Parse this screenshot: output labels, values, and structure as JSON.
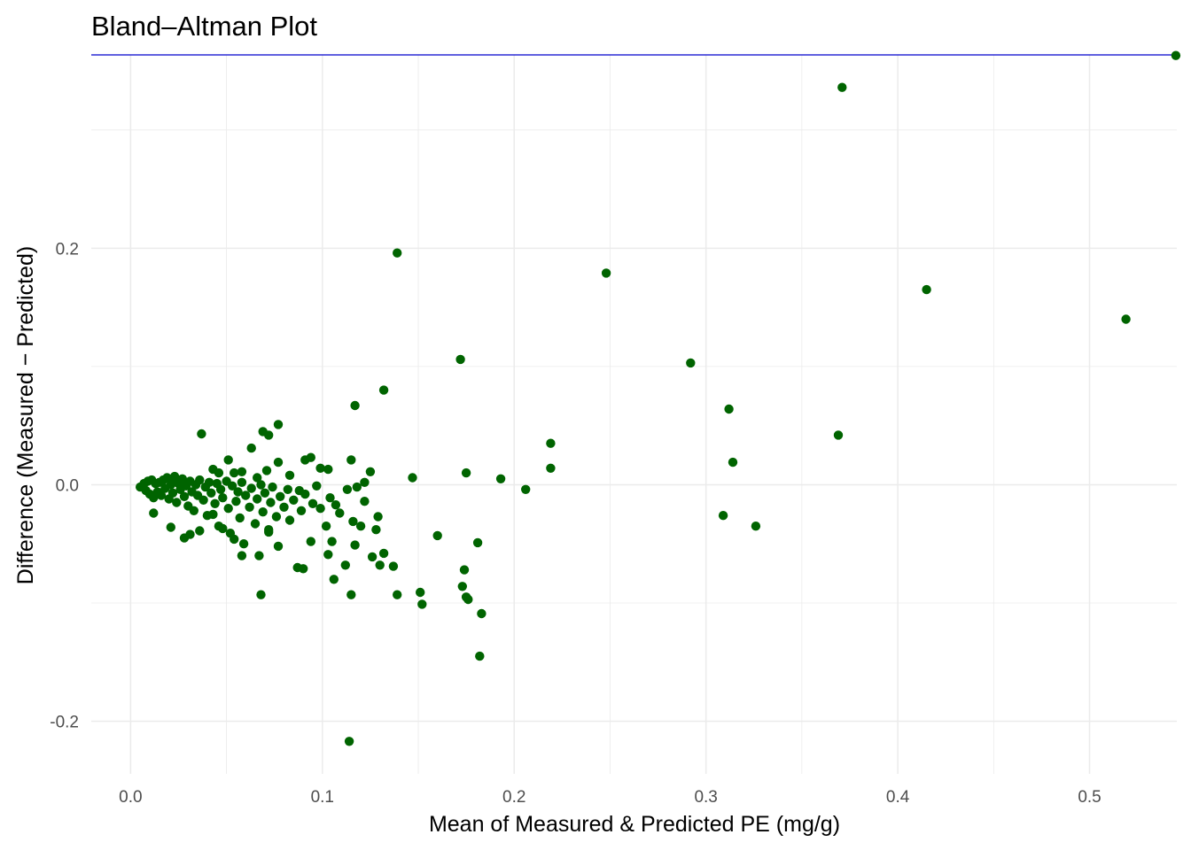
{
  "chart_data": {
    "type": "scatter",
    "title": "Bland–Altman Plot",
    "xlabel": "Mean of Measured & Predicted PE (mg/g)",
    "ylabel": "Difference (Measured − Predicted)",
    "xlim": [
      -0.0205,
      0.5455
    ],
    "ylim": [
      -0.2445,
      0.3635
    ],
    "x_ticks": [
      0.0,
      0.1,
      0.2,
      0.3,
      0.4,
      0.5
    ],
    "x_tick_labels": [
      "0.0",
      "0.1",
      "0.2",
      "0.3",
      "0.4",
      "0.5"
    ],
    "y_ticks": [
      -0.2,
      0.0,
      0.2
    ],
    "y_tick_labels": [
      "-0.2",
      "0.0",
      "0.2"
    ],
    "grid": true,
    "colors": {
      "points": "#006400",
      "reference_line": "#0000cc",
      "grid": "#ebebeb"
    },
    "reference_lines": [
      {
        "y": 0.3635
      }
    ],
    "series": [
      {
        "points": [
          [
            0.545,
            0.363
          ],
          [
            0.371,
            0.336
          ],
          [
            0.139,
            0.196
          ],
          [
            0.248,
            0.179
          ],
          [
            0.415,
            0.165
          ],
          [
            0.519,
            0.14
          ],
          [
            0.172,
            0.106
          ],
          [
            0.292,
            0.103
          ],
          [
            0.132,
            0.08
          ],
          [
            0.117,
            0.067
          ],
          [
            0.312,
            0.064
          ],
          [
            0.077,
            0.051
          ],
          [
            0.069,
            0.045
          ],
          [
            0.037,
            0.043
          ],
          [
            0.072,
            0.042
          ],
          [
            0.369,
            0.042
          ],
          [
            0.219,
            0.035
          ],
          [
            0.063,
            0.031
          ],
          [
            0.051,
            0.021
          ],
          [
            0.115,
            0.021
          ],
          [
            0.091,
            0.021
          ],
          [
            0.094,
            0.023
          ],
          [
            0.077,
            0.019
          ],
          [
            0.314,
            0.019
          ],
          [
            0.219,
            0.014
          ],
          [
            0.099,
            0.014
          ],
          [
            0.103,
            0.013
          ],
          [
            0.043,
            0.013
          ],
          [
            0.046,
            0.01
          ],
          [
            0.054,
            0.01
          ],
          [
            0.125,
            0.011
          ],
          [
            0.058,
            0.011
          ],
          [
            0.071,
            0.012
          ],
          [
            0.175,
            0.01
          ],
          [
            0.023,
            0.007
          ],
          [
            0.066,
            0.006
          ],
          [
            0.147,
            0.006
          ],
          [
            0.193,
            0.005
          ],
          [
            0.122,
            0.002
          ],
          [
            0.083,
            0.008
          ],
          [
            0.206,
            -0.004
          ],
          [
            0.005,
            -0.002
          ],
          [
            0.007,
            0.001
          ],
          [
            0.008,
            -0.005
          ],
          [
            0.009,
            0.003
          ],
          [
            0.01,
            -0.008
          ],
          [
            0.011,
            0.004
          ],
          [
            0.012,
            -0.011
          ],
          [
            0.013,
            0.001
          ],
          [
            0.014,
            -0.006
          ],
          [
            0.015,
            0.002
          ],
          [
            0.016,
            -0.009
          ],
          [
            0.017,
            0.004
          ],
          [
            0.018,
            -0.003
          ],
          [
            0.019,
            0.006
          ],
          [
            0.02,
            -0.012
          ],
          [
            0.021,
            0.0
          ],
          [
            0.022,
            -0.007
          ],
          [
            0.023,
            0.003
          ],
          [
            0.024,
            -0.015
          ],
          [
            0.025,
            0.001
          ],
          [
            0.026,
            -0.004
          ],
          [
            0.027,
            0.005
          ],
          [
            0.028,
            -0.01
          ],
          [
            0.029,
            -0.001
          ],
          [
            0.03,
            -0.018
          ],
          [
            0.031,
            0.003
          ],
          [
            0.032,
            -0.006
          ],
          [
            0.033,
            -0.022
          ],
          [
            0.034,
            0.0
          ],
          [
            0.035,
            -0.009
          ],
          [
            0.036,
            0.004
          ],
          [
            0.038,
            -0.013
          ],
          [
            0.039,
            -0.002
          ],
          [
            0.04,
            -0.026
          ],
          [
            0.041,
            0.002
          ],
          [
            0.042,
            -0.007
          ],
          [
            0.044,
            -0.016
          ],
          [
            0.045,
            0.001
          ],
          [
            0.046,
            -0.035
          ],
          [
            0.047,
            -0.004
          ],
          [
            0.048,
            -0.011
          ],
          [
            0.05,
            0.003
          ],
          [
            0.051,
            -0.02
          ],
          [
            0.052,
            -0.041
          ],
          [
            0.053,
            -0.001
          ],
          [
            0.055,
            -0.014
          ],
          [
            0.056,
            -0.006
          ],
          [
            0.057,
            -0.028
          ],
          [
            0.058,
            0.002
          ],
          [
            0.059,
            -0.05
          ],
          [
            0.06,
            -0.009
          ],
          [
            0.062,
            -0.019
          ],
          [
            0.063,
            -0.003
          ],
          [
            0.065,
            -0.033
          ],
          [
            0.066,
            -0.012
          ],
          [
            0.067,
            -0.06
          ],
          [
            0.068,
            0.0
          ],
          [
            0.069,
            -0.023
          ],
          [
            0.07,
            -0.007
          ],
          [
            0.072,
            -0.04
          ],
          [
            0.073,
            -0.015
          ],
          [
            0.074,
            -0.002
          ],
          [
            0.076,
            -0.027
          ],
          [
            0.077,
            -0.052
          ],
          [
            0.078,
            -0.01
          ],
          [
            0.08,
            -0.019
          ],
          [
            0.082,
            -0.004
          ],
          [
            0.083,
            -0.03
          ],
          [
            0.085,
            -0.013
          ],
          [
            0.087,
            -0.07
          ],
          [
            0.088,
            -0.005
          ],
          [
            0.089,
            -0.022
          ],
          [
            0.091,
            -0.008
          ],
          [
            0.094,
            -0.048
          ],
          [
            0.095,
            -0.016
          ],
          [
            0.097,
            -0.001
          ],
          [
            0.099,
            -0.02
          ],
          [
            0.102,
            -0.035
          ],
          [
            0.103,
            -0.059
          ],
          [
            0.104,
            -0.011
          ],
          [
            0.105,
            -0.048
          ],
          [
            0.106,
            -0.08
          ],
          [
            0.107,
            -0.017
          ],
          [
            0.109,
            -0.024
          ],
          [
            0.112,
            -0.068
          ],
          [
            0.113,
            -0.004
          ],
          [
            0.115,
            -0.093
          ],
          [
            0.116,
            -0.031
          ],
          [
            0.117,
            -0.051
          ],
          [
            0.118,
            -0.002
          ],
          [
            0.12,
            -0.035
          ],
          [
            0.122,
            -0.014
          ],
          [
            0.126,
            -0.061
          ],
          [
            0.128,
            -0.038
          ],
          [
            0.129,
            -0.027
          ],
          [
            0.13,
            -0.068
          ],
          [
            0.132,
            -0.058
          ],
          [
            0.137,
            -0.069
          ],
          [
            0.139,
            -0.093
          ],
          [
            0.151,
            -0.091
          ],
          [
            0.152,
            -0.101
          ],
          [
            0.16,
            -0.043
          ],
          [
            0.173,
            -0.086
          ],
          [
            0.174,
            -0.072
          ],
          [
            0.175,
            -0.095
          ],
          [
            0.176,
            -0.097
          ],
          [
            0.181,
            -0.049
          ],
          [
            0.183,
            -0.109
          ],
          [
            0.182,
            -0.145
          ],
          [
            0.114,
            -0.217
          ],
          [
            0.068,
            -0.093
          ],
          [
            0.09,
            -0.071
          ],
          [
            0.309,
            -0.026
          ],
          [
            0.326,
            -0.035
          ],
          [
            0.043,
            -0.025
          ],
          [
            0.048,
            -0.037
          ],
          [
            0.054,
            -0.046
          ],
          [
            0.058,
            -0.06
          ],
          [
            0.072,
            -0.038
          ],
          [
            0.031,
            -0.042
          ],
          [
            0.036,
            -0.039
          ],
          [
            0.021,
            -0.036
          ],
          [
            0.028,
            -0.045
          ],
          [
            0.012,
            -0.024
          ]
        ]
      }
    ]
  }
}
